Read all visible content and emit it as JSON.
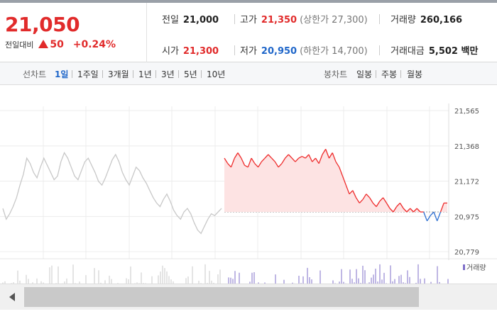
{
  "summary": {
    "price": "21,050",
    "change_label": "전일대비",
    "change_amount": "50",
    "change_pct": "+0.24%",
    "prev_close": {
      "label": "전일",
      "value": "21,000"
    },
    "open": {
      "label": "시가",
      "value": "21,300"
    },
    "high": {
      "label": "고가",
      "value": "21,350",
      "sub": "(상한가 27,300)"
    },
    "low": {
      "label": "저가",
      "value": "20,950",
      "sub": "(하한가 14,700)"
    },
    "volume": {
      "label": "거래량",
      "value": "260,166"
    },
    "amount": {
      "label": "거래대금",
      "value": "5,502 백만"
    }
  },
  "toolbar": {
    "line_label": "선차트",
    "periods": [
      "1일",
      "1주일",
      "3개월",
      "1년",
      "3년",
      "5년",
      "10년"
    ],
    "active_period": "1일",
    "candle_label": "봉차트",
    "candles": [
      "일봉",
      "주봉",
      "월봉"
    ]
  },
  "chart_data": {
    "type": "line",
    "y_ticks": [
      "21,565",
      "21,368",
      "21,172",
      "20,975",
      "20,779"
    ],
    "ylim": [
      20779,
      21565
    ],
    "reference": 21000,
    "volume_legend": "거래량",
    "colors": {
      "up": "#ee2b2b",
      "down": "#2c6fd1",
      "prior": "#c8c8c8",
      "up_fill": "#fde3e3"
    },
    "prior_day_series": [
      21020,
      20960,
      20990,
      21030,
      21080,
      21150,
      21210,
      21300,
      21270,
      21220,
      21190,
      21250,
      21300,
      21260,
      21220,
      21180,
      21200,
      21280,
      21330,
      21300,
      21250,
      21200,
      21180,
      21230,
      21280,
      21300,
      21260,
      21220,
      21170,
      21150,
      21190,
      21240,
      21290,
      21320,
      21280,
      21220,
      21180,
      21150,
      21200,
      21250,
      21230,
      21190,
      21160,
      21120,
      21080,
      21050,
      21030,
      21070,
      21100,
      21060,
      21010,
      20980,
      20960,
      21000,
      21020,
      20990,
      20940,
      20900,
      20880,
      20920,
      20960,
      20990,
      20980,
      21000,
      21020
    ],
    "today_series": [
      21300,
      21270,
      21250,
      21300,
      21330,
      21300,
      21260,
      21250,
      21300,
      21270,
      21250,
      21280,
      21300,
      21320,
      21300,
      21280,
      21250,
      21270,
      21300,
      21320,
      21300,
      21280,
      21300,
      21310,
      21300,
      21320,
      21280,
      21300,
      21270,
      21320,
      21350,
      21300,
      21330,
      21280,
      21250,
      21200,
      21150,
      21100,
      21120,
      21080,
      21050,
      21070,
      21100,
      21080,
      21050,
      21030,
      21060,
      21080,
      21050,
      21020,
      21000,
      21030,
      21050,
      21020,
      21000,
      21020,
      21000,
      21020,
      21000,
      21000,
      20950,
      20980,
      21000,
      20950,
      21000,
      21050,
      21050
    ]
  }
}
